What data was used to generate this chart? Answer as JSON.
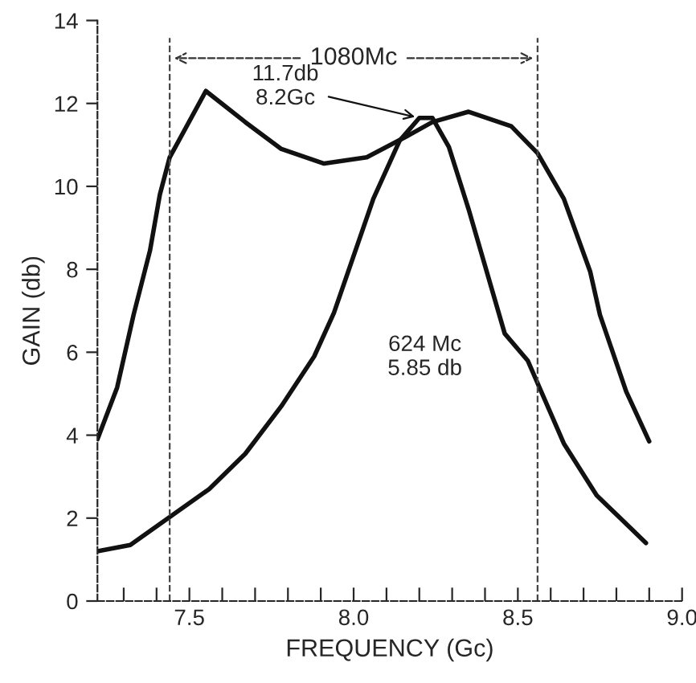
{
  "chart_data": {
    "type": "line",
    "xlabel": "FREQUENCY (Gc)",
    "ylabel": "GAIN (db)",
    "xlim": [
      7.22,
      9.0
    ],
    "ylim": [
      0,
      14
    ],
    "xticks": [
      {
        "value": 7.3,
        "label": null
      },
      {
        "value": 7.4,
        "label": null
      },
      {
        "value": 7.5,
        "label": "7.5"
      },
      {
        "value": 7.6,
        "label": null
      },
      {
        "value": 7.7,
        "label": null
      },
      {
        "value": 7.8,
        "label": null
      },
      {
        "value": 7.9,
        "label": null
      },
      {
        "value": 8.0,
        "label": "8.0"
      },
      {
        "value": 8.1,
        "label": null
      },
      {
        "value": 8.2,
        "label": null
      },
      {
        "value": 8.3,
        "label": null
      },
      {
        "value": 8.4,
        "label": null
      },
      {
        "value": 8.5,
        "label": "8.5"
      },
      {
        "value": 8.6,
        "label": null
      },
      {
        "value": 8.7,
        "label": null
      },
      {
        "value": 8.8,
        "label": null
      },
      {
        "value": 8.9,
        "label": null
      },
      {
        "value": 9.0,
        "label": "9.0"
      }
    ],
    "yticks": [
      0,
      2,
      4,
      6,
      8,
      10,
      12,
      14
    ],
    "grid": false,
    "legend": false,
    "marker": "none",
    "line_style": "solid",
    "series": [
      {
        "color": "#111111",
        "x": [
          7.22,
          7.28,
          7.33,
          7.38,
          7.41,
          7.44,
          7.55,
          7.67,
          7.78,
          7.91,
          8.04,
          8.16,
          8.24,
          8.35,
          8.48,
          8.56,
          8.64,
          8.72,
          8.75,
          8.83,
          8.9
        ],
        "values": [
          3.9,
          5.15,
          6.9,
          8.45,
          9.8,
          10.7,
          12.3,
          11.55,
          10.9,
          10.55,
          10.7,
          11.2,
          11.55,
          11.8,
          11.45,
          10.8,
          9.7,
          7.95,
          6.9,
          5.05,
          3.85
        ]
      },
      {
        "color": "#111111",
        "x": [
          7.22,
          7.32,
          7.56,
          7.67,
          7.78,
          7.88,
          7.94,
          8.06,
          8.14,
          8.2,
          8.24,
          8.29,
          8.35,
          8.46,
          8.53,
          8.64,
          8.74,
          8.89
        ],
        "values": [
          1.2,
          1.35,
          2.7,
          3.55,
          4.7,
          5.9,
          6.95,
          9.7,
          11.1,
          11.65,
          11.65,
          10.95,
          9.45,
          6.45,
          5.8,
          3.8,
          2.55,
          1.4
        ]
      }
    ],
    "ref_lines": [
      {
        "axis": "x",
        "value": 7.44,
        "line_style": "dashed",
        "color": "#444444"
      },
      {
        "axis": "x",
        "value": 8.56,
        "line_style": "dashed",
        "color": "#444444"
      }
    ],
    "annotations": [
      "1080Mc",
      {
        "text": "11.7db\n8.2Gc",
        "x": 8.2,
        "y": 11.65
      },
      "624 Mc\n5.85 db"
    ]
  }
}
